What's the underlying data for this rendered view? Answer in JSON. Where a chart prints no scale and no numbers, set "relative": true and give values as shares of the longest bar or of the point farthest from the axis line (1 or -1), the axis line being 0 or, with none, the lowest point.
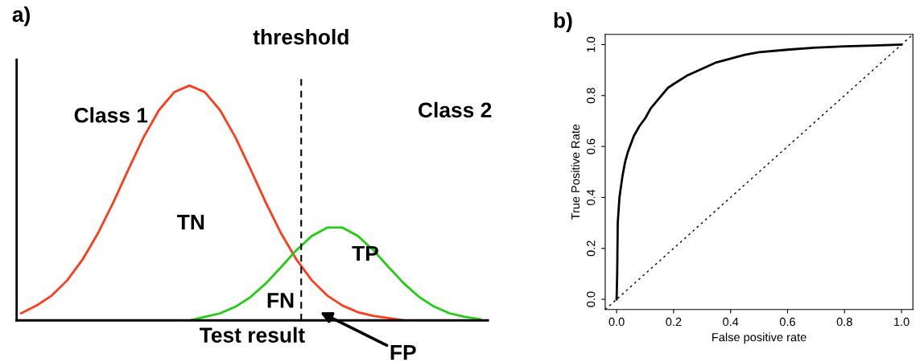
{
  "chart_data": [
    {
      "type": "line",
      "title": "a)",
      "xlabel": "Test result",
      "relative": true,
      "categories": [
        null,
        null,
        null,
        null,
        null,
        null,
        null,
        null,
        null,
        null,
        null,
        null,
        null,
        null,
        null,
        null,
        null,
        null,
        null,
        null,
        null,
        null,
        null,
        null,
        null,
        null,
        null,
        null,
        null,
        null,
        null
      ],
      "series": [
        {
          "color": "#ff3b1a",
          "values": [
            0.03,
            0.063,
            0.106,
            0.17,
            0.258,
            0.369,
            0.5,
            0.642,
            0.78,
            0.895,
            0.972,
            1,
            0.972,
            0.895,
            0.78,
            0.642,
            0.5,
            0.369,
            0.258,
            0.17,
            0.106,
            0.063,
            0.035,
            0.019,
            0.01,
            0.0,
            null,
            null,
            null,
            null,
            null
          ]
        },
        {
          "color": "#22cc11",
          "values": [
            null,
            null,
            null,
            null,
            null,
            null,
            null,
            null,
            null,
            null,
            null,
            0.0,
            0.015,
            0.03,
            0.058,
            0.1,
            0.158,
            0.228,
            0.3,
            0.36,
            0.395,
            0.395,
            0.36,
            0.3,
            0.228,
            0.158,
            0.1,
            0.058,
            0.03,
            0.015,
            0.005
          ]
        }
      ],
      "annotations": [
        "Class 1",
        "Class 2",
        "TN",
        "TP",
        "FN",
        "FP",
        "threshold"
      ],
      "grid": false,
      "legend": false,
      "tick_labels": false
    },
    {
      "type": "line",
      "title": "b)",
      "xlabel": "False positive rate",
      "ylabel": "True Positive Rate",
      "xlim": [
        -0.04,
        1.04
      ],
      "ylim": [
        -0.04,
        1.04
      ],
      "xticks": [
        {
          "value": 0,
          "label": "0.0"
        },
        {
          "value": 0.2,
          "label": "0.2"
        },
        {
          "value": 0.4,
          "label": "0.4"
        },
        {
          "value": 0.6,
          "label": "0.6"
        },
        {
          "value": 0.8,
          "label": "0.8"
        },
        {
          "value": 1,
          "label": "1.0"
        }
      ],
      "yticks": [
        {
          "value": 0,
          "label": "0.0"
        },
        {
          "value": 0.2,
          "label": "0.2"
        },
        {
          "value": 0.4,
          "label": "0.4"
        },
        {
          "value": 0.6,
          "label": "0.6"
        },
        {
          "value": 0.8,
          "label": "0.8"
        },
        {
          "value": 1,
          "label": "1.0"
        }
      ],
      "series": [
        {
          "color": "#000000",
          "line_style": "solid",
          "x": [
            0,
            0.002,
            0.004,
            0.01,
            0.02,
            0.03,
            0.04,
            0.06,
            0.08,
            0.1,
            0.12,
            0.15,
            0.18,
            0.2,
            0.25,
            0.3,
            0.35,
            0.4,
            0.45,
            0.5,
            0.6,
            0.7,
            0.8,
            0.9,
            1.0
          ],
          "values": [
            0,
            0.1,
            0.3,
            0.4,
            0.48,
            0.54,
            0.58,
            0.64,
            0.68,
            0.71,
            0.75,
            0.79,
            0.83,
            0.845,
            0.88,
            0.905,
            0.93,
            0.945,
            0.96,
            0.97,
            0.98,
            0.988,
            0.993,
            0.996,
            1.0
          ]
        },
        {
          "color": "#000000",
          "line_style": "dotted",
          "x": [
            -0.04,
            1.04
          ],
          "values": [
            -0.04,
            1.04
          ]
        }
      ],
      "grid": false,
      "legend": false
    }
  ]
}
